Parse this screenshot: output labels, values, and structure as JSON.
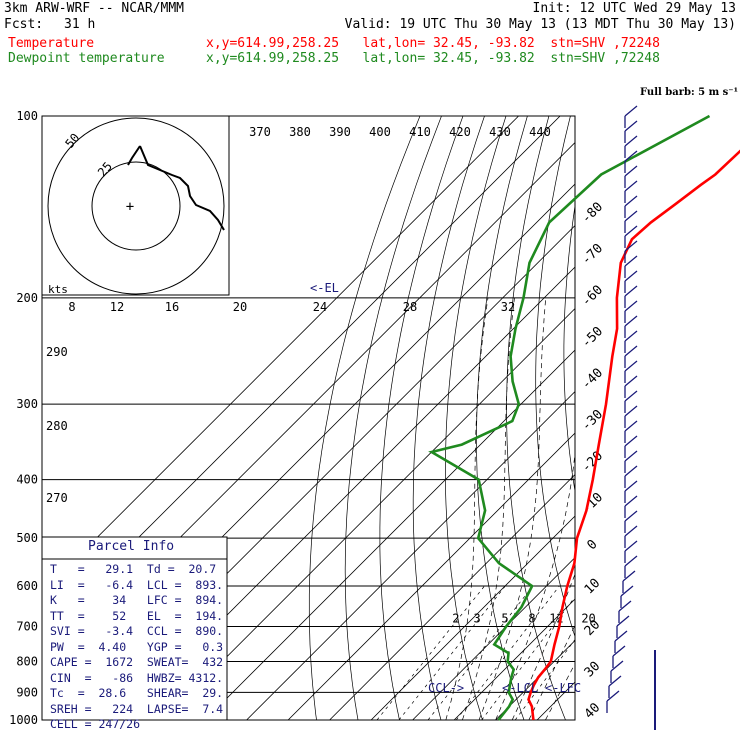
{
  "header": {
    "title": "3km ARW-WRF -- NCAR/MMM",
    "init": "Init: 12 UTC Wed 29 May 13",
    "fcst_label": "Fcst:",
    "fcst_value": "31 h",
    "valid": "Valid: 19 UTC Thu 30 May 13 (13 MDT Thu 30 May 13)",
    "temp_label": "Temperature",
    "dew_label": "Dewpoint temperature",
    "location": "x,y=614.99,258.25   lat,lon= 32.45, -93.82  stn=SHV ,72248"
  },
  "colors": {
    "temperature": "#ff0000",
    "dewpoint": "#1f8a1f",
    "axes": "#000000",
    "barbs": "#1a1a7a"
  },
  "chart_data": {
    "type": "line",
    "title": "",
    "y_axis": "Pressure (hPa), log scale",
    "ylim": [
      1000,
      100
    ],
    "y_ticks": [
      100,
      200,
      300,
      400,
      500,
      600,
      700,
      800,
      900,
      1000
    ],
    "isotherm_labels": [
      -80,
      -70,
      -60,
      -50,
      -40,
      -30,
      -20,
      -10,
      0,
      10,
      20,
      30,
      40
    ],
    "theta_labels": [
      370,
      380,
      390,
      400,
      410,
      420,
      430,
      440
    ],
    "theta_low_labels": [
      290,
      280,
      270
    ],
    "mixing_ratio_labels": [
      2,
      3,
      5,
      8,
      12,
      20
    ],
    "hodograph": {
      "unit": "kts",
      "rings": [
        25,
        50
      ],
      "scale_labels": [
        8,
        12,
        16,
        20,
        24,
        28,
        32
      ]
    },
    "markers": [
      "<-EL",
      "CCL->",
      "<-LCL",
      "<-LFC"
    ],
    "barb_legend": "Full barb: 5 m s⁻¹",
    "series": [
      {
        "key": "temperature",
        "name": "Temperature",
        "points": [
          [
            1000,
            29.1
          ],
          [
            950,
            25.5
          ],
          [
            925,
            23
          ],
          [
            900,
            21.8
          ],
          [
            875,
            20.8
          ],
          [
            850,
            20.0
          ],
          [
            825,
            19.7
          ],
          [
            800,
            19.2
          ],
          [
            750,
            16.0
          ],
          [
            700,
            12.8
          ],
          [
            650,
            8.9
          ],
          [
            600,
            5.0
          ],
          [
            550,
            1.2
          ],
          [
            500,
            -4.2
          ],
          [
            450,
            -8.6
          ],
          [
            400,
            -14.5
          ],
          [
            350,
            -21.5
          ],
          [
            300,
            -29.5
          ],
          [
            250,
            -39.5
          ],
          [
            225,
            -45.0
          ],
          [
            200,
            -52.5
          ],
          [
            175,
            -60.0
          ],
          [
            160,
            -63.0
          ],
          [
            150,
            -62.5
          ],
          [
            140,
            -61.0
          ],
          [
            130,
            -59.5
          ],
          [
            125,
            -58.5
          ],
          [
            110,
            -58.0
          ],
          [
            100,
            -60.0
          ]
        ]
      },
      {
        "key": "dewpoint",
        "name": "Dewpoint temperature",
        "points": [
          [
            1000,
            20.7
          ],
          [
            950,
            20.0
          ],
          [
            925,
            19.2
          ],
          [
            900,
            16.5
          ],
          [
            850,
            13.5
          ],
          [
            825,
            12.2
          ],
          [
            800,
            8.8
          ],
          [
            775,
            7.0
          ],
          [
            750,
            1.5
          ],
          [
            700,
            0.0
          ],
          [
            650,
            -1.0
          ],
          [
            600,
            -3.5
          ],
          [
            550,
            -17.0
          ],
          [
            500,
            -28.0
          ],
          [
            450,
            -33.0
          ],
          [
            400,
            -42.0
          ],
          [
            360,
            -60.0
          ],
          [
            350,
            -54.5
          ],
          [
            320,
            -48.0
          ],
          [
            300,
            -50.5
          ],
          [
            275,
            -57.5
          ],
          [
            250,
            -64.0
          ],
          [
            225,
            -69.5
          ],
          [
            200,
            -75.0
          ],
          [
            175,
            -82.0
          ],
          [
            150,
            -87.0
          ],
          [
            125,
            -86.0
          ],
          [
            100,
            -74.0
          ]
        ]
      }
    ]
  },
  "parcel_info": {
    "title": "Parcel Info",
    "rows": [
      "T   =   29.1  Td =  20.7",
      "LI  =   -6.4  LCL =  893.",
      "K   =    34   LFC =  894.",
      "TT  =    52   EL  =  194.",
      "SVI =   -3.4  CCL =  890.",
      "PW  =  4.40   YGP =   0.3",
      "CAPE =  1672  SWEAT=  432",
      "CIN  =   -86  HWBZ= 4312.",
      "Tc  =  28.6   SHEAR=  29.",
      "SREH =   224  LAPSE=  7.4",
      "CELL = 247/26"
    ]
  }
}
